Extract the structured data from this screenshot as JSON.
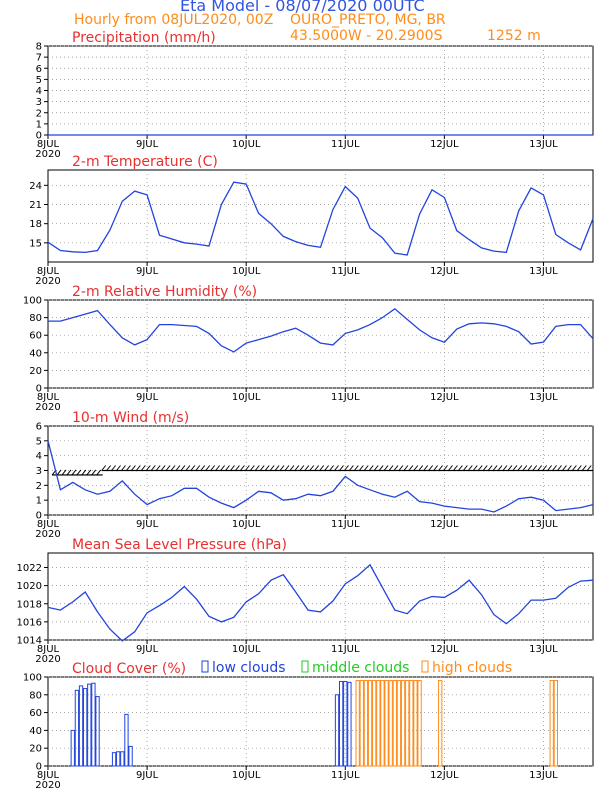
{
  "header": {
    "title": "Eta Model - 08/07/2020 00UTC",
    "line2": "Hourly from 08JUL2020, 00Z",
    "location": "OURO_PRETO, MG, BR",
    "coords": "43.5000W - 20.2900S",
    "elevation": "1252  m"
  },
  "colors": {
    "title": "#3355dd",
    "orange": "#ff8c1a",
    "red": "#e83030",
    "line": "#2244dd",
    "green": "#22cc22"
  },
  "x_axis": {
    "ticks": [
      {
        "hour": 0,
        "label": "8JUL",
        "sub": "2020"
      },
      {
        "hour": 24,
        "label": "9JUL"
      },
      {
        "hour": 48,
        "label": "10JUL"
      },
      {
        "hour": 72,
        "label": "11JUL"
      },
      {
        "hour": 96,
        "label": "12JUL"
      },
      {
        "hour": 120,
        "label": "13JUL"
      }
    ],
    "range": [
      0,
      132
    ]
  },
  "chart_data": [
    {
      "type": "line",
      "title": "Precipitation (mm/h)",
      "ylim": [
        0,
        8
      ],
      "yticks": [
        0,
        1,
        2,
        3,
        4,
        5,
        6,
        7,
        8
      ],
      "x": [
        0,
        132
      ],
      "values": [
        0,
        0
      ]
    },
    {
      "type": "line",
      "title": "2-m Temperature (C)",
      "ylim": [
        12,
        26.4
      ],
      "yticks": [
        15,
        18,
        21,
        24
      ],
      "x": [
        0,
        3,
        6,
        9,
        12,
        15,
        18,
        21,
        24,
        27,
        30,
        33,
        36,
        39,
        42,
        45,
        48,
        51,
        54,
        57,
        60,
        63,
        66,
        69,
        72,
        75,
        78,
        81,
        84,
        87,
        90,
        93,
        96,
        99,
        102,
        105,
        108,
        111,
        114,
        117,
        120,
        123,
        126,
        129,
        132
      ],
      "values": [
        15.1,
        13.8,
        13.6,
        13.5,
        13.8,
        17.0,
        21.5,
        23.1,
        22.5,
        16.2,
        15.6,
        15.0,
        14.8,
        14.5,
        21.0,
        24.5,
        24.2,
        19.6,
        18.0,
        16.0,
        15.2,
        14.6,
        14.3,
        20.2,
        23.8,
        22.0,
        17.3,
        15.8,
        13.4,
        13.1,
        19.5,
        23.3,
        22.1,
        16.9,
        15.5,
        14.2,
        13.7,
        13.5,
        20.0,
        23.6,
        22.5,
        16.3,
        15.0,
        13.9,
        18.8
      ]
    },
    {
      "type": "line",
      "title": "2-m Relative Humidity (%)",
      "ylim": [
        0,
        100
      ],
      "yticks": [
        0,
        20,
        40,
        60,
        80,
        100
      ],
      "x": [
        0,
        3,
        6,
        9,
        12,
        15,
        18,
        21,
        24,
        27,
        30,
        33,
        36,
        39,
        42,
        45,
        48,
        51,
        54,
        57,
        60,
        63,
        66,
        69,
        72,
        75,
        78,
        81,
        84,
        87,
        90,
        93,
        96,
        99,
        102,
        105,
        108,
        111,
        114,
        117,
        120,
        123,
        126,
        129,
        132
      ],
      "values": [
        76,
        76,
        80,
        84,
        88,
        72,
        57,
        49,
        55,
        72,
        72,
        71,
        70,
        62,
        48,
        41,
        51,
        55,
        59,
        64,
        68,
        60,
        51,
        49,
        62,
        66,
        72,
        80,
        90,
        78,
        66,
        57,
        52,
        67,
        73,
        74,
        73,
        70,
        64,
        50,
        52,
        70,
        72,
        72,
        56
      ]
    },
    {
      "type": "line",
      "title": "10-m Wind (m/s)",
      "ylim": [
        0,
        6
      ],
      "yticks": [
        0,
        1,
        2,
        3,
        4,
        5,
        6
      ],
      "x": [
        0,
        3,
        6,
        9,
        12,
        15,
        18,
        21,
        24,
        27,
        30,
        33,
        36,
        39,
        42,
        45,
        48,
        51,
        54,
        57,
        60,
        63,
        66,
        69,
        72,
        75,
        78,
        81,
        84,
        87,
        90,
        93,
        96,
        99,
        102,
        105,
        108,
        111,
        114,
        117,
        120,
        123,
        126,
        129,
        132
      ],
      "values": [
        5.0,
        1.7,
        2.2,
        1.7,
        1.4,
        1.6,
        2.3,
        1.4,
        0.7,
        1.1,
        1.3,
        1.8,
        1.8,
        1.2,
        0.8,
        0.5,
        1.0,
        1.6,
        1.5,
        1.0,
        1.1,
        1.4,
        1.3,
        1.6,
        2.6,
        2.0,
        1.7,
        1.4,
        1.2,
        1.6,
        0.9,
        0.8,
        0.6,
        0.5,
        0.4,
        0.4,
        0.2,
        0.6,
        1.1,
        1.2,
        1.0,
        0.3,
        0.4,
        0.5,
        0.7
      ],
      "barbs": "wind barbs along ~3 m/s"
    },
    {
      "type": "line",
      "title": "Mean Sea Level Pressure (hPa)",
      "ylim": [
        1014,
        1023.6
      ],
      "yticks": [
        1014,
        1016,
        1018,
        1020,
        1022
      ],
      "x": [
        0,
        3,
        6,
        9,
        12,
        15,
        18,
        21,
        24,
        27,
        30,
        33,
        36,
        39,
        42,
        45,
        48,
        51,
        54,
        57,
        60,
        63,
        66,
        69,
        72,
        75,
        78,
        81,
        84,
        87,
        90,
        93,
        96,
        99,
        102,
        105,
        108,
        111,
        114,
        117,
        120,
        123,
        126,
        129,
        132
      ],
      "values": [
        1017.6,
        1017.3,
        1018.2,
        1019.3,
        1017.1,
        1015.2,
        1013.9,
        1014.9,
        1017.0,
        1017.8,
        1018.7,
        1019.9,
        1018.5,
        1016.6,
        1016.0,
        1016.5,
        1018.2,
        1019.1,
        1020.6,
        1021.2,
        1019.3,
        1017.3,
        1017.1,
        1018.3,
        1020.2,
        1021.1,
        1022.3,
        1019.8,
        1017.3,
        1016.9,
        1018.3,
        1018.8,
        1018.7,
        1019.5,
        1020.6,
        1019.0,
        1016.8,
        1015.8,
        1016.9,
        1018.4,
        1018.4,
        1018.6,
        1019.8,
        1020.5,
        1020.6
      ]
    },
    {
      "type": "bar",
      "title": "Cloud Cover (%)",
      "ylim": [
        0,
        100
      ],
      "yticks": [
        0,
        20,
        40,
        60,
        80,
        100
      ],
      "legend": [
        {
          "name": "low clouds",
          "key": "low"
        },
        {
          "name": "middle clouds",
          "key": "mid"
        },
        {
          "name": "high clouds",
          "key": "high"
        }
      ],
      "series": [
        {
          "name": "low clouds",
          "x": [
            6,
            7,
            8,
            9,
            10,
            11,
            12,
            13,
            16,
            17,
            18,
            19,
            20,
            21
          ],
          "values": [
            40,
            85,
            90,
            87,
            92,
            93,
            78,
            0,
            15,
            16,
            16,
            58,
            22,
            0
          ]
        },
        {
          "name": "low clouds",
          "x": [
            70,
            71,
            72,
            73
          ],
          "values": [
            80,
            95,
            95,
            94
          ]
        },
        {
          "name": "high clouds",
          "x": [
            75,
            76,
            77,
            78,
            79,
            80,
            81,
            82,
            83,
            84,
            85,
            86,
            87,
            88,
            89,
            90,
            95,
            122,
            123
          ],
          "values": [
            96,
            96,
            96,
            96,
            96,
            96,
            96,
            96,
            96,
            96,
            96,
            96,
            96,
            96,
            96,
            96,
            96,
            96,
            96
          ]
        }
      ]
    }
  ]
}
